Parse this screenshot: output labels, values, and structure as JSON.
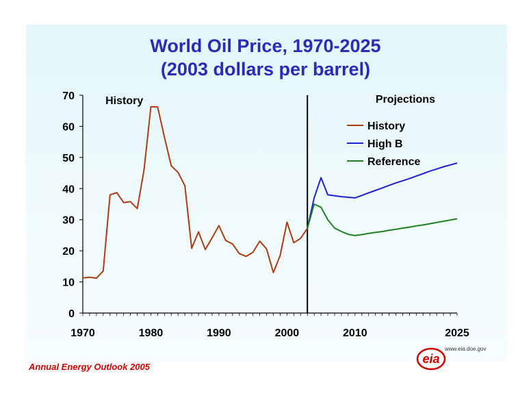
{
  "chart_data": {
    "type": "line",
    "title": "World Oil Price, 1970-2025",
    "subtitle": "(2003 dollars per barrel)",
    "xlabel": "",
    "ylabel": "",
    "xlim": [
      1970,
      2025
    ],
    "ylim": [
      0,
      70
    ],
    "x_ticks": [
      1970,
      1980,
      1990,
      2000,
      2010,
      2025
    ],
    "y_ticks": [
      0,
      10,
      20,
      30,
      40,
      50,
      60,
      70
    ],
    "grid": false,
    "legend_position": "top-right",
    "divider_x": 2003,
    "annotations": [
      "History",
      "Projections"
    ],
    "series": [
      {
        "name": "History",
        "color": "#b03a0f",
        "x": [
          1970,
          1971,
          1972,
          1973,
          1974,
          1975,
          1976,
          1977,
          1978,
          1979,
          1980,
          1981,
          1982,
          1983,
          1984,
          1985,
          1986,
          1987,
          1988,
          1989,
          1990,
          1991,
          1992,
          1993,
          1994,
          1995,
          1996,
          1997,
          1998,
          1999,
          2000,
          2001,
          2002,
          2003
        ],
        "values": [
          11.3,
          11.5,
          11.2,
          13.5,
          38.0,
          38.7,
          35.5,
          35.8,
          33.6,
          46.0,
          66.3,
          66.2,
          56.5,
          47.3,
          45.2,
          40.9,
          20.8,
          26.1,
          20.4,
          24.2,
          28.1,
          23.3,
          22.2,
          19.1,
          18.2,
          19.5,
          23.1,
          20.6,
          13.0,
          18.5,
          29.2,
          22.6,
          24.0,
          27.2
        ]
      },
      {
        "name": "High B",
        "color": "#1f1fd6",
        "x": [
          2003,
          2004,
          2005,
          2006,
          2007,
          2008,
          2009,
          2010,
          2011,
          2012,
          2013,
          2014,
          2015,
          2016,
          2017,
          2018,
          2019,
          2020,
          2021,
          2022,
          2023,
          2024,
          2025
        ],
        "values": [
          27.2,
          37.0,
          43.5,
          38.0,
          37.7,
          37.4,
          37.2,
          37.0,
          37.8,
          38.6,
          39.4,
          40.2,
          41.0,
          41.8,
          42.5,
          43.2,
          44.0,
          44.8,
          45.6,
          46.3,
          47.0,
          47.6,
          48.2
        ]
      },
      {
        "name": "Reference",
        "color": "#1e7f1e",
        "x": [
          2003,
          2004,
          2005,
          2006,
          2007,
          2008,
          2009,
          2010,
          2011,
          2012,
          2013,
          2014,
          2015,
          2016,
          2017,
          2018,
          2019,
          2020,
          2021,
          2022,
          2023,
          2024,
          2025
        ],
        "values": [
          27.2,
          35.0,
          34.0,
          30.0,
          27.3,
          26.2,
          25.3,
          24.9,
          25.2,
          25.6,
          25.9,
          26.2,
          26.6,
          26.9,
          27.3,
          27.6,
          28.0,
          28.3,
          28.7,
          29.1,
          29.5,
          29.9,
          30.3
        ]
      }
    ]
  },
  "footer": "Annual Energy Outlook 2005",
  "logo": {
    "text": "eia",
    "url": "www.eia.doe.gov",
    "color": "#d40000"
  }
}
